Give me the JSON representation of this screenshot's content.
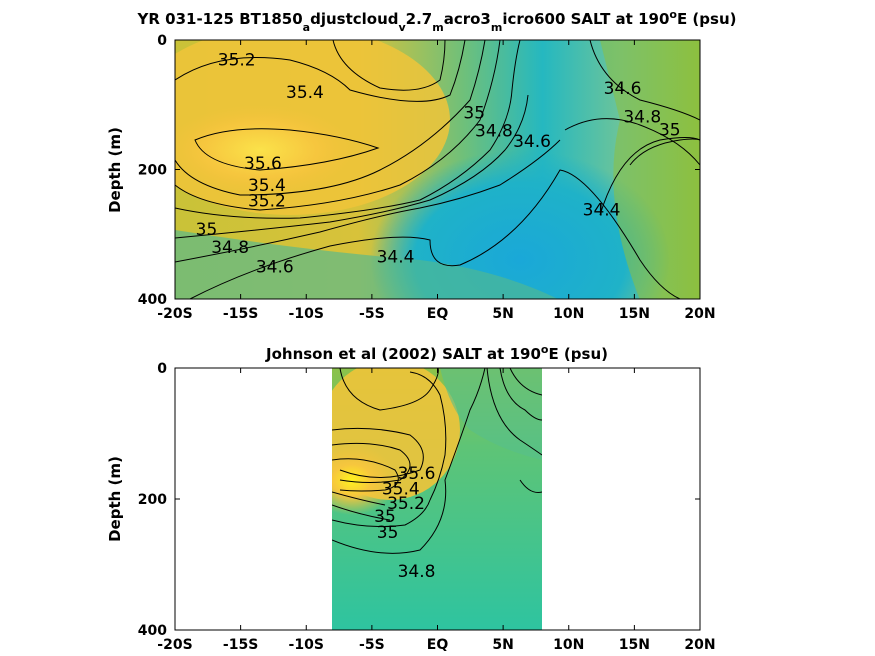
{
  "figure": {
    "colors": {
      "high_salt": "#f2c23a",
      "peak_salt": "#f8e24a",
      "mid_salt": "#a6c23a",
      "low_salt": "#1fb2c8",
      "lowest_salt": "#20a8d8",
      "obs_bg": "#3cc49a"
    }
  },
  "chart_data": [
    {
      "type": "heatmap",
      "title_parts": [
        "YR 031-125 BT1850",
        "a",
        "djustcloud",
        "v",
        "2.7",
        "m",
        "acro3",
        "m",
        "icro600 SALT at 190",
        "o",
        "E (psu)"
      ],
      "ylabel": "Depth (m)",
      "xlim": [
        -20,
        20
      ],
      "ylim": [
        0,
        400
      ],
      "x_ticks": [
        -20,
        -15,
        -10,
        -5,
        0,
        5,
        10,
        15,
        20
      ],
      "x_tick_labels": [
        "-20S",
        "-15S",
        "-10S",
        "-5S",
        "EQ",
        "5N",
        "10N",
        "15N",
        "20N"
      ],
      "y_ticks": [
        0,
        200,
        400
      ],
      "y_tick_labels": [
        "0",
        "200",
        "400"
      ],
      "contour_labels": [
        {
          "text": "35.2",
          "x": -15.3,
          "y": 30
        },
        {
          "text": "35.4",
          "x": -10.1,
          "y": 80
        },
        {
          "text": "35.6",
          "x": -13.3,
          "y": 190
        },
        {
          "text": "35.4",
          "x": -13.0,
          "y": 224
        },
        {
          "text": "35.2",
          "x": -13.0,
          "y": 248
        },
        {
          "text": "35",
          "x": -17.6,
          "y": 292
        },
        {
          "text": "34.8",
          "x": -15.8,
          "y": 320
        },
        {
          "text": "34.6",
          "x": -12.4,
          "y": 350
        },
        {
          "text": "34.4",
          "x": -3.2,
          "y": 334
        },
        {
          "text": "35",
          "x": 2.8,
          "y": 112
        },
        {
          "text": "34.8",
          "x": 4.3,
          "y": 140
        },
        {
          "text": "34.6",
          "x": 7.2,
          "y": 156
        },
        {
          "text": "34.4",
          "x": 12.5,
          "y": 262
        },
        {
          "text": "34.6",
          "x": 14.1,
          "y": 74
        },
        {
          "text": "34.8",
          "x": 15.6,
          "y": 118
        },
        {
          "text": "35",
          "x": 17.7,
          "y": 138
        }
      ]
    },
    {
      "type": "heatmap",
      "title_parts": [
        "Johnson et al (2002) SALT at 190",
        "o",
        "E (psu)"
      ],
      "ylabel": "Depth (m)",
      "xlim": [
        -20,
        20
      ],
      "ylim": [
        0,
        400
      ],
      "data_x_range": [
        -8,
        8
      ],
      "x_ticks": [
        -20,
        -15,
        -10,
        -5,
        0,
        5,
        10,
        15,
        20
      ],
      "x_tick_labels": [
        "-20S",
        "-15S",
        "-10S",
        "-5S",
        "EQ",
        "5N",
        "10N",
        "15N",
        "20N"
      ],
      "y_ticks": [
        0,
        200,
        400
      ],
      "y_tick_labels": [
        "0",
        "200",
        "400"
      ],
      "contour_labels": [
        {
          "text": "35.6",
          "x": -1.6,
          "y": 160
        },
        {
          "text": "35.4",
          "x": -2.8,
          "y": 184
        },
        {
          "text": "35.2",
          "x": -2.4,
          "y": 206
        },
        {
          "text": "35",
          "x": -4.0,
          "y": 226
        },
        {
          "text": "35",
          "x": -3.8,
          "y": 250
        },
        {
          "text": "34.8",
          "x": -1.6,
          "y": 310
        }
      ]
    }
  ]
}
